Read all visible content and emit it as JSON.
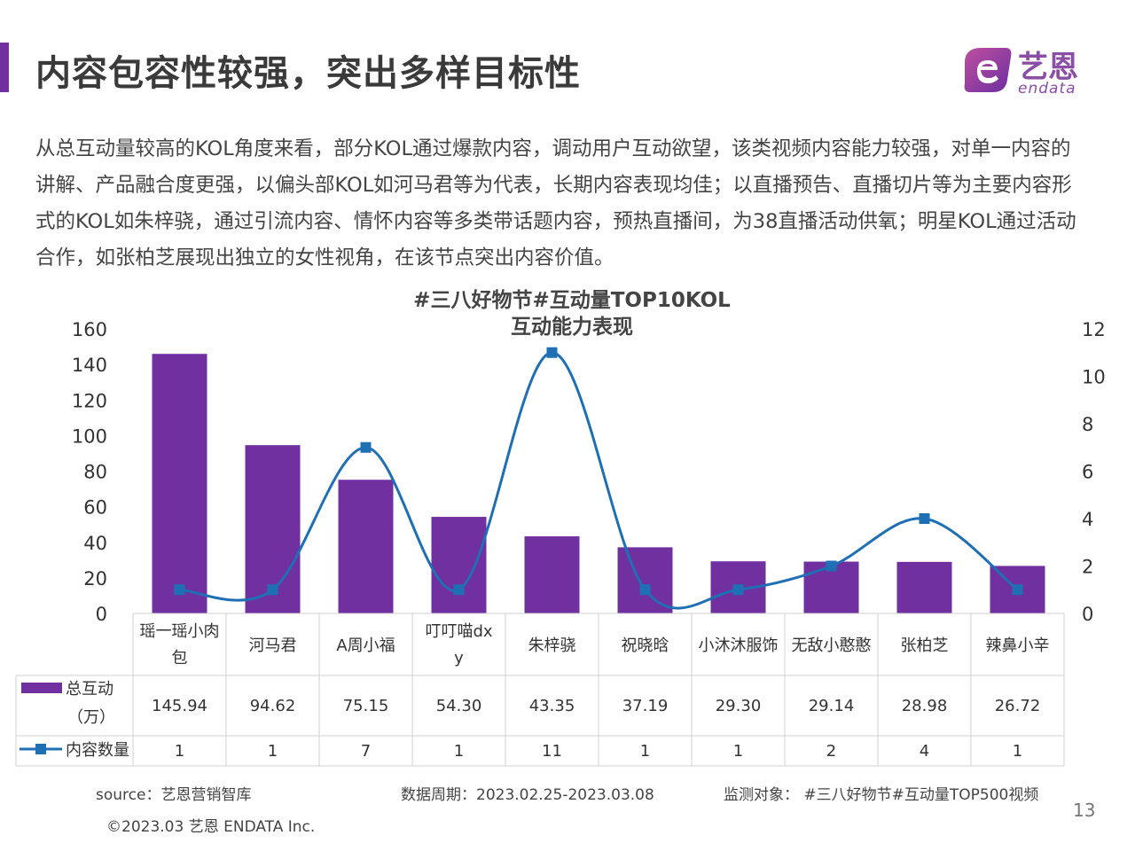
{
  "colors": {
    "accent": "#7030a0",
    "bar": "#7030a0",
    "line": "#1f6fb5"
  },
  "title": "内容包容性较强，突出多样目标性",
  "logo": {
    "cn": "艺恩",
    "en": "endata",
    "icon": "endata-e-logo-icon"
  },
  "intro": "从总互动量较高的KOL角度来看，部分KOL通过爆款内容，调动用户互动欲望，该类视频内容能力较强，对单一内容的讲解、产品融合度更强，以偏头部KOL如河马君等为代表，长期内容表现均佳；以直播预告、直播切片等为主要内容形式的KOL如朱梓骁，通过引流内容、情怀内容等多类带话题内容，预热直播间，为38直播活动供氧；明星KOL通过活动合作，如张柏芝展现出独立的女性视角，在该节点突出内容价值。",
  "chart_data": {
    "type": "bar",
    "title": "#三八好物节#互动量TOP10KOL",
    "subtitle": "互动能力表现",
    "categories": [
      "瑶一瑶小肉包",
      "河马君",
      "A周小福",
      "叮叮喵dxy",
      "朱梓骁",
      "祝晓晗",
      "小沐沐服饰",
      "无敌小憨憨",
      "张柏芝",
      "辣鼻小辛"
    ],
    "series": [
      {
        "name": "总互动（万）",
        "type": "bar",
        "axis": "left",
        "values": [
          145.94,
          94.62,
          75.15,
          54.3,
          43.35,
          37.19,
          29.3,
          29.14,
          28.98,
          26.72
        ],
        "labels": [
          "145.94",
          "94.62",
          "75.15",
          "54.30",
          "43.35",
          "37.19",
          "29.30",
          "29.14",
          "28.98",
          "26.72"
        ]
      },
      {
        "name": "内容数量",
        "type": "line",
        "axis": "right",
        "values": [
          1,
          1,
          7,
          1,
          11,
          1,
          1,
          2,
          4,
          1
        ],
        "labels": [
          "1",
          "1",
          "7",
          "1",
          "11",
          "1",
          "1",
          "2",
          "4",
          "1"
        ]
      }
    ],
    "left_axis": {
      "min": 0,
      "max": 160,
      "ticks": [
        0,
        20,
        40,
        60,
        80,
        100,
        120,
        140,
        160
      ]
    },
    "right_axis": {
      "min": 0,
      "max": 12,
      "ticks": [
        0,
        2,
        4,
        6,
        8,
        10,
        12
      ]
    },
    "data_table": true,
    "grid": false
  },
  "footer": {
    "source": "source：艺恩营销智库",
    "period": "数据周期：2023.02.25-2023.03.08",
    "target": "监测对象：  #三八好物节#互动量TOP500视频",
    "copyright": "©2023.03 艺恩 ENDATA Inc.",
    "page": "13"
  }
}
